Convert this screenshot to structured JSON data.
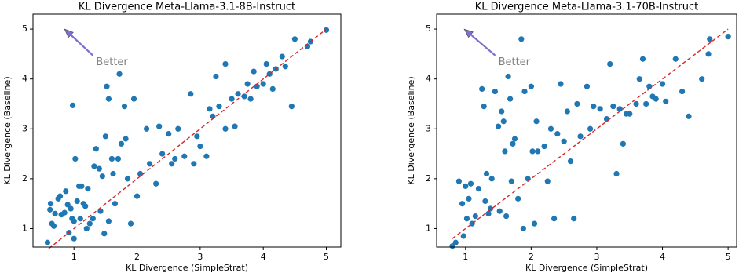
{
  "chart_data": [
    {
      "type": "scatter",
      "title": "KL Divergence Meta-Llama-3.1-8B-Instruct",
      "xlabel": "KL Divergence (SimpleStrat)",
      "ylabel": "KL Divergence (Baseline)",
      "xlim": [
        0.35,
        5.23
      ],
      "ylim": [
        0.63,
        5.3
      ],
      "xticks": [
        1,
        2,
        3,
        4,
        5
      ],
      "yticks": [
        1,
        2,
        3,
        4,
        5
      ],
      "grid": false,
      "color": "#1f77b4",
      "reference_line": {
        "color": "#d62728",
        "x": [
          0.6,
          5.0
        ],
        "values": [
          0.6,
          5.0
        ]
      },
      "annotation": {
        "text": "Better",
        "color": "#7b6fd0",
        "xy": [
          0.85,
          5.0
        ],
        "xytext": [
          1.35,
          4.33
        ]
      },
      "x": [
        0.58,
        0.62,
        0.63,
        0.65,
        0.68,
        0.7,
        0.75,
        0.78,
        0.8,
        0.85,
        0.87,
        0.9,
        0.92,
        0.95,
        0.97,
        0.98,
        1.0,
        1.0,
        1.02,
        1.05,
        1.08,
        1.1,
        1.12,
        1.15,
        1.18,
        1.2,
        1.22,
        1.25,
        1.3,
        1.32,
        1.35,
        1.4,
        1.42,
        1.45,
        1.48,
        1.5,
        1.52,
        1.55,
        1.55,
        1.6,
        1.62,
        1.65,
        1.7,
        1.72,
        1.75,
        1.8,
        1.82,
        1.85,
        1.9,
        1.95,
        2.0,
        2.05,
        2.15,
        2.2,
        2.3,
        2.35,
        2.4,
        2.5,
        2.55,
        2.6,
        2.65,
        2.75,
        2.85,
        2.9,
        2.95,
        3.0,
        3.1,
        3.15,
        3.2,
        3.25,
        3.3,
        3.4,
        3.4,
        3.5,
        3.55,
        3.6,
        3.7,
        3.75,
        3.8,
        3.85,
        3.9,
        4.0,
        4.05,
        4.1,
        4.15,
        4.2,
        4.3,
        4.35,
        4.45,
        4.5,
        4.7,
        4.75,
        5.0
      ],
      "values": [
        0.72,
        1.38,
        1.5,
        1.1,
        1.05,
        1.3,
        1.6,
        1.65,
        1.28,
        1.32,
        1.75,
        1.48,
        0.92,
        1.4,
        1.2,
        3.47,
        0.8,
        1.15,
        2.4,
        1.55,
        1.85,
        1.2,
        1.85,
        1.5,
        1.45,
        1.0,
        1.8,
        1.1,
        1.2,
        2.25,
        2.6,
        2.2,
        1.35,
        2.05,
        0.9,
        2.85,
        3.85,
        3.6,
        1.15,
        2.4,
        2.1,
        1.5,
        2.4,
        4.1,
        2.7,
        3.45,
        2.8,
        2.0,
        1.1,
        3.6,
        1.65,
        2.1,
        3.0,
        2.3,
        1.9,
        3.05,
        2.5,
        2.9,
        2.3,
        2.4,
        3.0,
        2.45,
        3.7,
        2.3,
        2.85,
        2.65,
        2.45,
        3.4,
        3.25,
        4.05,
        3.45,
        4.3,
        3.0,
        3.6,
        3.05,
        3.7,
        3.65,
        3.9,
        3.6,
        4.15,
        3.85,
        3.9,
        4.3,
        4.1,
        3.8,
        4.2,
        4.45,
        4.25,
        3.45,
        4.8,
        4.65,
        4.75,
        4.98
      ]
    },
    {
      "type": "scatter",
      "title": "KL Divergence Meta-Llama-3.1-70B-Instruct",
      "xlabel": "KL Divergence (SimpleStrat)",
      "ylabel": "KL Divergence (Baseline)",
      "xlim": [
        0.56,
        5.13
      ],
      "ylim": [
        0.63,
        5.3
      ],
      "xticks": [
        1,
        2,
        3,
        4,
        5
      ],
      "yticks": [
        1,
        2,
        3,
        4,
        5
      ],
      "grid": false,
      "color": "#1f77b4",
      "reference_line": {
        "color": "#d62728",
        "x": [
          0.8,
          5.0
        ],
        "values": [
          0.8,
          5.0
        ]
      },
      "annotation": {
        "text": "Better",
        "color": "#7b6fd0",
        "xy": [
          0.98,
          5.0
        ],
        "xytext": [
          1.5,
          4.33
        ]
      },
      "x": [
        0.8,
        0.85,
        0.9,
        0.95,
        0.97,
        1.0,
        1.02,
        1.05,
        1.08,
        1.1,
        1.15,
        1.2,
        1.25,
        1.28,
        1.3,
        1.32,
        1.35,
        1.38,
        1.4,
        1.45,
        1.5,
        1.52,
        1.55,
        1.58,
        1.6,
        1.62,
        1.65,
        1.68,
        1.7,
        1.72,
        1.75,
        1.8,
        1.85,
        1.88,
        1.9,
        1.95,
        2.0,
        2.02,
        2.05,
        2.08,
        2.1,
        2.2,
        2.25,
        2.3,
        2.35,
        2.4,
        2.45,
        2.5,
        2.55,
        2.6,
        2.65,
        2.7,
        2.75,
        2.85,
        2.9,
        2.95,
        3.05,
        3.15,
        3.2,
        3.25,
        3.3,
        3.35,
        3.4,
        3.45,
        3.5,
        3.6,
        3.65,
        3.7,
        3.75,
        3.8,
        3.85,
        3.9,
        4.0,
        4.05,
        4.2,
        4.3,
        4.4,
        4.6,
        4.7,
        4.72,
        5.0
      ],
      "values": [
        0.65,
        0.72,
        1.95,
        1.5,
        0.85,
        1.85,
        1.2,
        1.6,
        1.9,
        1.1,
        1.25,
        1.8,
        3.8,
        3.45,
        1.55,
        2.1,
        1.3,
        1.4,
        2.0,
        3.75,
        3.05,
        1.35,
        3.35,
        3.15,
        2.55,
        1.25,
        4.05,
        3.6,
        1.95,
        2.7,
        2.8,
        1.6,
        4.8,
        1.0,
        3.75,
        2.0,
        3.85,
        2.55,
        1.1,
        3.15,
        2.55,
        2.65,
        1.95,
        3.0,
        1.2,
        2.9,
        3.9,
        2.75,
        3.35,
        2.35,
        1.2,
        3.5,
        2.85,
        3.85,
        3.0,
        3.45,
        3.4,
        3.2,
        4.3,
        3.45,
        2.1,
        3.4,
        2.7,
        3.3,
        3.3,
        3.5,
        4.0,
        4.4,
        3.5,
        3.85,
        3.65,
        3.6,
        3.9,
        3.55,
        4.4,
        3.75,
        3.25,
        4.0,
        4.5,
        4.8,
        4.85
      ]
    }
  ]
}
